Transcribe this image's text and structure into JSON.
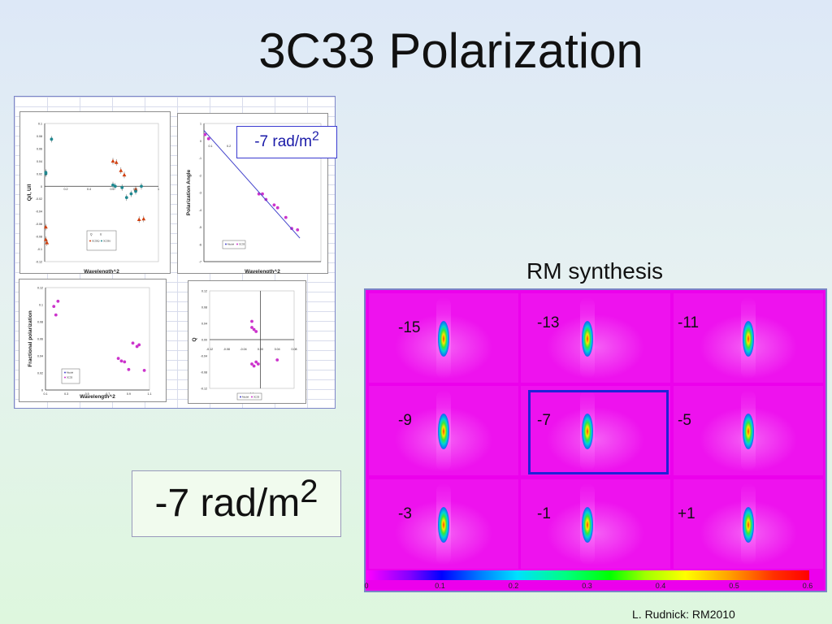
{
  "title": "3C33 Polarization",
  "callout_small": {
    "text": "-7 rad/m",
    "sup": "2"
  },
  "callout_big": {
    "text": "-7 rad/m",
    "sup": "2"
  },
  "rm_synthesis": {
    "title": "RM synthesis",
    "cells": [
      "-15",
      "-13",
      "-11",
      "-9",
      "-7",
      "-5",
      "-3",
      "-1",
      "+1"
    ],
    "highlighted": "-7",
    "colorbar_ticks": [
      "0",
      "0.1",
      "0.2",
      "0.3",
      "0.4",
      "0.5",
      "0.6"
    ]
  },
  "credit": "L. Rudnick:  RM2010",
  "chart_data": [
    {
      "type": "scatter",
      "xlabel": "Wavelength^2",
      "ylabel": "Q/I, U/I",
      "xlim": [
        0,
        1
      ],
      "ylim": [
        -0.12,
        0.1
      ],
      "xticks": [
        "0.2",
        "0.4",
        "0.6",
        "0.8",
        "1"
      ],
      "yticks": [
        "0.1",
        "0.08",
        "0.06",
        "0.04",
        "0.02",
        "0",
        "-0.02",
        "-0.04",
        "-0.06",
        "-0.08",
        "-0.1",
        "-0.12"
      ],
      "legend": {
        "title": [
          "Q",
          "U"
        ],
        "entries": [
          "3C33Q",
          "3C33U"
        ]
      },
      "series": [
        {
          "name": "3C33Q",
          "color": "#d04010",
          "marker": "triangle",
          "x": [
            0.01,
            0.01,
            0.02,
            0.6,
            0.63,
            0.67,
            0.7,
            0.8,
            0.83,
            0.87
          ],
          "y": [
            -0.065,
            -0.085,
            -0.09,
            0.04,
            0.038,
            0.025,
            0.018,
            -0.005,
            -0.053,
            -0.052
          ]
        },
        {
          "name": "3C33U",
          "color": "#208890",
          "marker": "circle",
          "x": [
            0.01,
            0.01,
            0.06,
            0.6,
            0.62,
            0.68,
            0.72,
            0.76,
            0.8,
            0.85
          ],
          "y": [
            0.02,
            0.022,
            0.075,
            0.002,
            0.0,
            -0.002,
            -0.018,
            -0.012,
            -0.008,
            0.0
          ]
        }
      ]
    },
    {
      "type": "scatter",
      "xlabel": "Wavelength^2",
      "ylabel": "Polarization Angle",
      "xlim": [
        0,
        1
      ],
      "ylim": [
        -8,
        2
      ],
      "xticks": [
        "0.1",
        "0.2",
        "0.3",
        "0.4",
        "0.5",
        "0.6",
        "0.7"
      ],
      "yticks": [
        "1",
        "0",
        "-1",
        "-2",
        "-3",
        "-4",
        "-5",
        "-6",
        "-7"
      ],
      "legend": {
        "entries": [
          "Model",
          "3C33"
        ]
      },
      "series": [
        {
          "name": "3C33",
          "color": "#cc33cc",
          "x": [
            0.01,
            0.04,
            0.47,
            0.5,
            0.53,
            0.6,
            0.63,
            0.7,
            0.75,
            0.8
          ],
          "y": [
            1.2,
            0.9,
            -3.1,
            -3.1,
            -3.5,
            -3.9,
            -4.1,
            -4.8,
            -5.6,
            -5.7
          ]
        },
        {
          "name": "Model",
          "color": "#4444cc",
          "line": true,
          "x": [
            0.0,
            0.82
          ],
          "y": [
            1.5,
            -6.3
          ]
        }
      ]
    },
    {
      "type": "scatter",
      "xlabel": "Wavelength^2",
      "ylabel": "Fractional polarization",
      "xlim": [
        0,
        1
      ],
      "ylim": [
        0,
        0.12
      ],
      "xticks": [
        "0.1",
        "0.3",
        "0.5",
        "0.7",
        "0.9",
        "1.1"
      ],
      "yticks": [
        "0.12",
        "0.1",
        "0.08",
        "0.06",
        "0.04",
        "0.02",
        "0"
      ],
      "legend": {
        "entries": [
          "Model",
          "3C33"
        ]
      },
      "series": [
        {
          "name": "3C33",
          "color": "#cc33cc",
          "x": [
            0.08,
            0.1,
            0.12,
            0.7,
            0.73,
            0.76,
            0.8,
            0.84,
            0.88,
            0.9,
            0.95
          ],
          "y": [
            0.098,
            0.088,
            0.104,
            0.037,
            0.034,
            0.033,
            0.024,
            0.055,
            0.051,
            0.053,
            0.023
          ]
        }
      ]
    },
    {
      "type": "scatter",
      "xlabel": "U",
      "ylabel": "Q",
      "xlim": [
        -0.12,
        0.08
      ],
      "ylim": [
        -0.12,
        0.12
      ],
      "xticks": [
        "-0.12",
        "-0.08",
        "-0.04",
        "0.00",
        "0.04",
        "0.08"
      ],
      "yticks": [
        "0.12",
        "0.08",
        "0.04",
        "0.00",
        "-0.04",
        "-0.08",
        "-0.12"
      ],
      "legend": {
        "entries": [
          "Model",
          "3C33"
        ]
      },
      "series": [
        {
          "name": "3C33",
          "color": "#cc33cc",
          "x": [
            -0.02,
            -0.015,
            -0.01,
            -0.02,
            -0.005,
            -0.01,
            -0.015,
            -0.02,
            0.04
          ],
          "y": [
            0.03,
            0.025,
            0.02,
            0.045,
            -0.06,
            -0.055,
            -0.065,
            -0.06,
            -0.05
          ]
        }
      ]
    }
  ]
}
